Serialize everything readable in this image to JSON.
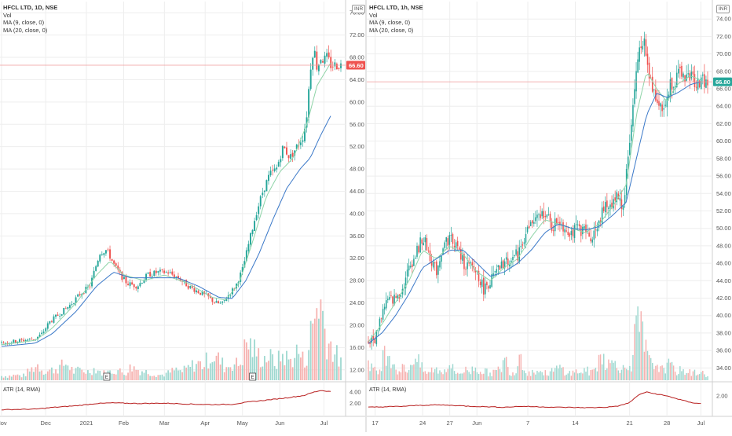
{
  "colors": {
    "up": "#26a69a",
    "down": "#ef5350",
    "ma9": "#8fd4a8",
    "ma20": "#3a78c8",
    "atr": "#b71c1c",
    "grid": "#eeeeee",
    "price_line": "#ef9a9a",
    "price_tag_left": "#ef5350",
    "price_tag_right": "#26a69a"
  },
  "charts": [
    {
      "title": "HFCL LTD, 1D, NSE",
      "indicators": [
        "Vol",
        "MA (9, close, 0)",
        "MA (20, close, 0)"
      ],
      "atr_label": "ATR (14, RMA)",
      "currency": "INR",
      "current_price": "66.60",
      "chart_data": {
        "type": "candlestick",
        "y_ticks": [
          "12.00",
          "16.00",
          "20.00",
          "24.00",
          "28.00",
          "32.00",
          "36.00",
          "40.00",
          "44.00",
          "48.00",
          "52.00",
          "56.00",
          "60.00",
          "64.00",
          "68.00",
          "72.00",
          "76.00"
        ],
        "ylim": [
          10,
          78
        ],
        "x_ticks": [
          {
            "label": "Nov",
            "x": 0.0
          },
          {
            "label": "Dec",
            "x": 0.13
          },
          {
            "label": "2021",
            "x": 0.25
          },
          {
            "label": "Feb",
            "x": 0.36
          },
          {
            "label": "Mar",
            "x": 0.48
          },
          {
            "label": "Apr",
            "x": 0.6
          },
          {
            "label": "May",
            "x": 0.71
          },
          {
            "label": "Jun",
            "x": 0.82
          },
          {
            "label": "Jul",
            "x": 0.95
          }
        ],
        "atr_ticks": [
          "2.00",
          "4.00"
        ],
        "atr_ylim": [
          0,
          5
        ],
        "earnings_markers": [
          0.31,
          0.74
        ],
        "price_path": [
          [
            0,
            16.8
          ],
          [
            0.05,
            17.2
          ],
          [
            0.1,
            17.6
          ],
          [
            0.12,
            18.5
          ],
          [
            0.14,
            20.5
          ],
          [
            0.17,
            22
          ],
          [
            0.2,
            23.5
          ],
          [
            0.23,
            25.5
          ],
          [
            0.26,
            27
          ],
          [
            0.29,
            33
          ],
          [
            0.31,
            33.5
          ],
          [
            0.33,
            31
          ],
          [
            0.35,
            29
          ],
          [
            0.37,
            27.5
          ],
          [
            0.4,
            27
          ],
          [
            0.43,
            29
          ],
          [
            0.46,
            29.5
          ],
          [
            0.49,
            29.5
          ],
          [
            0.52,
            28.5
          ],
          [
            0.55,
            27
          ],
          [
            0.58,
            26
          ],
          [
            0.61,
            25
          ],
          [
            0.63,
            24
          ],
          [
            0.65,
            23.8
          ],
          [
            0.67,
            25.5
          ],
          [
            0.69,
            27
          ],
          [
            0.71,
            30
          ],
          [
            0.73,
            35
          ],
          [
            0.75,
            40
          ],
          [
            0.77,
            44
          ],
          [
            0.79,
            47
          ],
          [
            0.81,
            48
          ],
          [
            0.83,
            52
          ],
          [
            0.85,
            50
          ],
          [
            0.87,
            52
          ],
          [
            0.89,
            54
          ],
          [
            0.9,
            58
          ],
          [
            0.91,
            66
          ],
          [
            0.92,
            70
          ],
          [
            0.93,
            66
          ],
          [
            0.94,
            68
          ],
          [
            0.95,
            67.5
          ],
          [
            0.96,
            68
          ],
          [
            0.97,
            66.6
          ]
        ],
        "ma9_path": [
          [
            0,
            16.5
          ],
          [
            0.1,
            17.3
          ],
          [
            0.15,
            19.5
          ],
          [
            0.22,
            24
          ],
          [
            0.28,
            29
          ],
          [
            0.32,
            31.5
          ],
          [
            0.36,
            29
          ],
          [
            0.42,
            28
          ],
          [
            0.48,
            29
          ],
          [
            0.55,
            27.5
          ],
          [
            0.62,
            25
          ],
          [
            0.66,
            24.5
          ],
          [
            0.7,
            27.5
          ],
          [
            0.74,
            35
          ],
          [
            0.78,
            43
          ],
          [
            0.82,
            47.5
          ],
          [
            0.86,
            50
          ],
          [
            0.9,
            56
          ],
          [
            0.93,
            63
          ],
          [
            0.97,
            67
          ]
        ],
        "ma20_path": [
          [
            0,
            16.2
          ],
          [
            0.1,
            16.8
          ],
          [
            0.15,
            18.5
          ],
          [
            0.22,
            22.5
          ],
          [
            0.28,
            27
          ],
          [
            0.33,
            29.5
          ],
          [
            0.38,
            28.5
          ],
          [
            0.45,
            28.5
          ],
          [
            0.52,
            28.5
          ],
          [
            0.58,
            27
          ],
          [
            0.64,
            25
          ],
          [
            0.68,
            24.8
          ],
          [
            0.72,
            28
          ],
          [
            0.76,
            33
          ],
          [
            0.8,
            39
          ],
          [
            0.84,
            44.5
          ],
          [
            0.88,
            48
          ],
          [
            0.91,
            50
          ],
          [
            0.94,
            54
          ],
          [
            0.97,
            57.5
          ]
        ],
        "atr_path": [
          [
            0,
            0.9
          ],
          [
            0.1,
            1.0
          ],
          [
            0.15,
            1.3
          ],
          [
            0.22,
            1.6
          ],
          [
            0.28,
            2.0
          ],
          [
            0.33,
            2.1
          ],
          [
            0.4,
            2.0
          ],
          [
            0.48,
            2.05
          ],
          [
            0.55,
            1.9
          ],
          [
            0.62,
            1.8
          ],
          [
            0.68,
            1.85
          ],
          [
            0.72,
            2.2
          ],
          [
            0.78,
            2.6
          ],
          [
            0.84,
            3.0
          ],
          [
            0.89,
            3.4
          ],
          [
            0.92,
            4.0
          ],
          [
            0.94,
            4.3
          ],
          [
            0.97,
            4.1
          ]
        ],
        "volume_profile": [
          0.05,
          0.05,
          0.06,
          0.05,
          0.12,
          0.18,
          0.1,
          0.12,
          0.15,
          0.2,
          0.1,
          0.12,
          0.1,
          0.14,
          0.08,
          0.1,
          0.12,
          0.08,
          0.16,
          0.12,
          0.1,
          0.08,
          0.06,
          0.08,
          0.12,
          0.1,
          0.15,
          0.2,
          0.18,
          0.3,
          0.25,
          0.15,
          0.2,
          0.18,
          0.45,
          0.35,
          0.25,
          0.28,
          0.2,
          0.3,
          0.22,
          0.35,
          0.2,
          0.6,
          1.0,
          0.5,
          0.35,
          0.2
        ]
      }
    },
    {
      "title": "HFCL LTD, 1h, NSE",
      "indicators": [
        "Vol",
        "MA (9, close, 0)",
        "MA (20, close, 0)"
      ],
      "atr_label": "ATR (14, RMA)",
      "currency": "INR",
      "current_price": "66.80",
      "chart_data": {
        "type": "candlestick",
        "y_ticks": [
          "34.00",
          "36.00",
          "38.00",
          "40.00",
          "42.00",
          "44.00",
          "46.00",
          "48.00",
          "50.00",
          "52.00",
          "54.00",
          "56.00",
          "58.00",
          "60.00",
          "62.00",
          "64.00",
          "66.00",
          "68.00",
          "70.00",
          "72.00",
          "74.00"
        ],
        "ylim": [
          32.5,
          76
        ],
        "x_ticks": [
          {
            "label": "17",
            "x": 0.02
          },
          {
            "label": "24",
            "x": 0.16
          },
          {
            "label": "27",
            "x": 0.24
          },
          {
            "label": "Jun",
            "x": 0.32
          },
          {
            "label": "7",
            "x": 0.47
          },
          {
            "label": "14",
            "x": 0.61
          },
          {
            "label": "21",
            "x": 0.77
          },
          {
            "label": "28",
            "x": 0.88
          },
          {
            "label": "Jul",
            "x": 0.98
          }
        ],
        "atr_ticks": [
          "2.00"
        ],
        "atr_ylim": [
          0,
          3
        ],
        "price_path": [
          [
            0,
            37
          ],
          [
            0.02,
            37.2
          ],
          [
            0.03,
            39
          ],
          [
            0.05,
            41.5
          ],
          [
            0.08,
            42
          ],
          [
            0.1,
            43
          ],
          [
            0.12,
            45.5
          ],
          [
            0.14,
            47
          ],
          [
            0.16,
            49
          ],
          [
            0.18,
            47
          ],
          [
            0.2,
            45
          ],
          [
            0.22,
            48
          ],
          [
            0.24,
            49
          ],
          [
            0.26,
            48
          ],
          [
            0.28,
            46
          ],
          [
            0.3,
            45.5
          ],
          [
            0.32,
            45
          ],
          [
            0.34,
            43
          ],
          [
            0.36,
            44
          ],
          [
            0.38,
            45
          ],
          [
            0.4,
            46
          ],
          [
            0.42,
            46.5
          ],
          [
            0.44,
            47
          ],
          [
            0.46,
            49
          ],
          [
            0.48,
            50.5
          ],
          [
            0.5,
            51
          ],
          [
            0.52,
            52
          ],
          [
            0.54,
            50
          ],
          [
            0.56,
            51
          ],
          [
            0.58,
            50
          ],
          [
            0.6,
            49.5
          ],
          [
            0.62,
            50
          ],
          [
            0.64,
            49.5
          ],
          [
            0.66,
            49
          ],
          [
            0.68,
            51
          ],
          [
            0.7,
            52.5
          ],
          [
            0.72,
            53
          ],
          [
            0.74,
            54
          ],
          [
            0.75,
            52
          ],
          [
            0.76,
            56
          ],
          [
            0.77,
            60
          ],
          [
            0.78,
            64
          ],
          [
            0.79,
            68
          ],
          [
            0.8,
            71
          ],
          [
            0.81,
            72
          ],
          [
            0.82,
            69
          ],
          [
            0.83,
            67
          ],
          [
            0.84,
            66
          ],
          [
            0.85,
            65
          ],
          [
            0.86,
            64.5
          ],
          [
            0.87,
            63
          ],
          [
            0.88,
            65
          ],
          [
            0.89,
            66.5
          ],
          [
            0.9,
            67
          ],
          [
            0.92,
            67.5
          ],
          [
            0.94,
            67.5
          ],
          [
            0.96,
            67
          ],
          [
            0.98,
            66.8
          ]
        ],
        "ma9_path": [
          [
            0,
            37
          ],
          [
            0.04,
            39
          ],
          [
            0.08,
            41.5
          ],
          [
            0.12,
            44
          ],
          [
            0.16,
            47.5
          ],
          [
            0.2,
            46.5
          ],
          [
            0.24,
            48
          ],
          [
            0.28,
            47
          ],
          [
            0.32,
            45
          ],
          [
            0.36,
            44
          ],
          [
            0.4,
            45.5
          ],
          [
            0.44,
            46.5
          ],
          [
            0.48,
            49
          ],
          [
            0.52,
            51
          ],
          [
            0.56,
            50.5
          ],
          [
            0.6,
            50
          ],
          [
            0.64,
            49.5
          ],
          [
            0.68,
            50.5
          ],
          [
            0.72,
            52.5
          ],
          [
            0.76,
            55
          ],
          [
            0.79,
            63
          ],
          [
            0.82,
            68
          ],
          [
            0.85,
            66
          ],
          [
            0.88,
            64.5
          ],
          [
            0.91,
            66.5
          ],
          [
            0.95,
            67.5
          ],
          [
            0.98,
            67
          ]
        ],
        "ma20_path": [
          [
            0,
            36.8
          ],
          [
            0.04,
            38
          ],
          [
            0.08,
            40
          ],
          [
            0.12,
            42.5
          ],
          [
            0.16,
            45.5
          ],
          [
            0.2,
            46.5
          ],
          [
            0.24,
            47.5
          ],
          [
            0.28,
            47.5
          ],
          [
            0.32,
            46
          ],
          [
            0.36,
            44.5
          ],
          [
            0.4,
            45
          ],
          [
            0.44,
            46
          ],
          [
            0.48,
            47.5
          ],
          [
            0.52,
            49.5
          ],
          [
            0.56,
            50.5
          ],
          [
            0.6,
            50
          ],
          [
            0.64,
            49.8
          ],
          [
            0.68,
            50.2
          ],
          [
            0.72,
            51.5
          ],
          [
            0.76,
            53
          ],
          [
            0.79,
            58
          ],
          [
            0.82,
            63
          ],
          [
            0.85,
            65.5
          ],
          [
            0.88,
            65
          ],
          [
            0.91,
            65.5
          ],
          [
            0.95,
            66.5
          ],
          [
            0.98,
            66.8
          ]
        ],
        "atr_path": [
          [
            0,
            0.8
          ],
          [
            0.05,
            0.85
          ],
          [
            0.1,
            0.9
          ],
          [
            0.15,
            1.0
          ],
          [
            0.2,
            1.05
          ],
          [
            0.25,
            1.0
          ],
          [
            0.3,
            0.9
          ],
          [
            0.35,
            0.85
          ],
          [
            0.4,
            0.8
          ],
          [
            0.45,
            0.9
          ],
          [
            0.5,
            0.85
          ],
          [
            0.55,
            0.8
          ],
          [
            0.6,
            0.78
          ],
          [
            0.65,
            0.75
          ],
          [
            0.7,
            0.8
          ],
          [
            0.74,
            0.95
          ],
          [
            0.77,
            1.3
          ],
          [
            0.8,
            2.2
          ],
          [
            0.82,
            2.4
          ],
          [
            0.85,
            2.2
          ],
          [
            0.88,
            2.0
          ],
          [
            0.92,
            1.6
          ],
          [
            0.95,
            1.3
          ],
          [
            0.98,
            1.2
          ]
        ],
        "volume_profile": [
          0.25,
          0.12,
          0.08,
          0.3,
          0.35,
          0.2,
          0.1,
          0.15,
          0.12,
          0.3,
          0.2,
          0.1,
          0.08,
          0.15,
          0.1,
          0.12,
          0.2,
          0.1,
          0.08,
          0.12,
          0.1,
          0.15,
          0.12,
          0.1,
          0.08,
          0.1,
          0.12,
          0.25,
          0.1,
          0.08,
          0.35,
          0.1,
          0.08,
          0.12,
          0.1,
          0.08,
          0.1,
          0.12,
          0.15,
          0.1,
          0.08,
          0.1,
          0.1,
          0.12,
          0.08,
          0.15,
          0.35,
          0.2,
          0.18,
          0.25,
          0.12,
          0.15,
          0.2,
          0.65,
          0.55,
          0.3,
          0.15,
          0.2,
          0.12,
          0.18,
          0.15,
          0.1,
          0.12,
          0.1,
          0.08,
          0.1,
          0.08,
          0.06
        ]
      }
    }
  ]
}
